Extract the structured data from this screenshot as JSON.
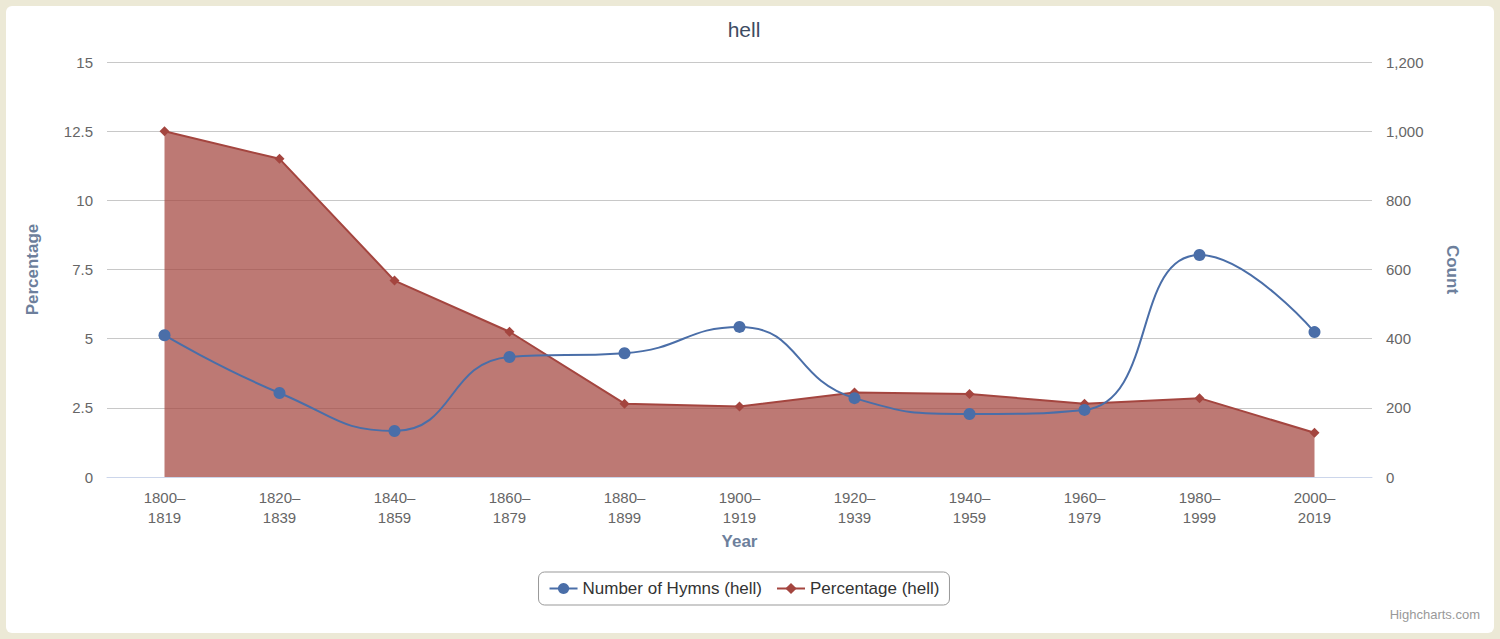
{
  "chart_data": {
    "type": "line",
    "title": "hell",
    "credits": "Highcharts.com",
    "x_label": "Year",
    "y_label": "Percentage",
    "y2_label": "Count",
    "categories": [
      "1800–1819",
      "1820–1839",
      "1840–1859",
      "1860–1879",
      "1880–1899",
      "1900–1919",
      "1920–1939",
      "1940–1959",
      "1960–1979",
      "1980–1999",
      "2000–2019"
    ],
    "series": [
      {
        "name": "Number of Hymns (hell)",
        "type": "line",
        "axis": "y2",
        "color": "#4a6ea8",
        "marker": "circle",
        "line_style": "solid",
        "values": [
          410,
          243,
          133,
          347,
          358,
          434,
          228,
          182,
          194,
          642,
          419
        ]
      },
      {
        "name": "Percentage (hell)",
        "type": "area",
        "color": "#a4453f",
        "marker": "diamond",
        "line_style": "solid",
        "values": [
          12.5,
          11.5,
          7.1,
          5.25,
          2.65,
          2.55,
          3.05,
          3.0,
          2.65,
          2.85,
          1.6
        ]
      }
    ],
    "ylim": [
      0,
      15
    ],
    "yticks": [
      0,
      2.5,
      5,
      7.5,
      10,
      12.5,
      15
    ],
    "y2lim": [
      0,
      1200
    ],
    "y2ticks": [
      0,
      200,
      400,
      600,
      800,
      {
        "value": 1000,
        "label": "1,000"
      },
      {
        "value": 1200,
        "label": "1,200"
      }
    ],
    "grid": true,
    "legend": "bottom"
  }
}
